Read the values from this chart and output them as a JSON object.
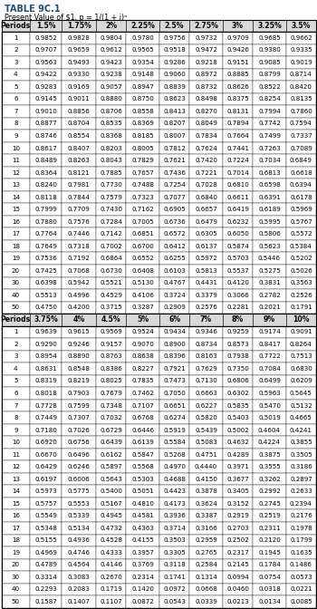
{
  "title1": "TABLE 9C.1",
  "title2": "Present Value of $1, p = 1/(1 + i)ⁿ",
  "header1": [
    "Periods",
    "1.5%",
    "1.75%",
    "2%",
    "2.25%",
    "2.5%",
    "2.75%",
    "3%",
    "3.25%",
    "3.5%"
  ],
  "rows1": [
    [
      1,
      "0.9852",
      "0.9828",
      "0.9804",
      "0.9780",
      "0.9756",
      "0.9732",
      "0.9709",
      "0.9685",
      "0.9662"
    ],
    [
      2,
      "0.9707",
      "0.9659",
      "0.9612",
      "0.9565",
      "0.9518",
      "0.9472",
      "0.9426",
      "0.9380",
      "0.9335"
    ],
    [
      3,
      "0.9563",
      "0.9493",
      "0.9423",
      "0.9354",
      "0.9286",
      "0.9218",
      "0.9151",
      "0.9085",
      "0.9019"
    ],
    [
      4,
      "0.9422",
      "0.9330",
      "0.9238",
      "0.9148",
      "0.9060",
      "0.8972",
      "0.8885",
      "0.8799",
      "0.8714"
    ],
    [
      5,
      "0.9283",
      "0.9169",
      "0.9057",
      "0.8947",
      "0.8839",
      "0.8732",
      "0.8626",
      "0.8522",
      "0.8420"
    ],
    [
      6,
      "0.9145",
      "0.9011",
      "0.8880",
      "0.8750",
      "0.8623",
      "0.8498",
      "0.8375",
      "0.8254",
      "0.8135"
    ],
    [
      7,
      "0.9010",
      "0.8856",
      "0.8706",
      "0.8558",
      "0.8413",
      "0.8270",
      "0.8131",
      "0.7994",
      "0.7860"
    ],
    [
      8,
      "0.8877",
      "0.8704",
      "0.8535",
      "0.8369",
      "0.8207",
      "0.8049",
      "0.7894",
      "0.7742",
      "0.7594"
    ],
    [
      9,
      "0.8746",
      "0.8554",
      "0.8368",
      "0.8185",
      "0.8007",
      "0.7834",
      "0.7664",
      "0.7499",
      "0.7337"
    ],
    [
      10,
      "0.8617",
      "0.8407",
      "0.8203",
      "0.8005",
      "0.7812",
      "0.7624",
      "0.7441",
      "0.7263",
      "0.7089"
    ],
    [
      11,
      "0.8489",
      "0.8263",
      "0.8043",
      "0.7829",
      "0.7621",
      "0.7420",
      "0.7224",
      "0.7034",
      "0.6849"
    ],
    [
      12,
      "0.8364",
      "0.8121",
      "0.7885",
      "0.7657",
      "0.7436",
      "0.7221",
      "0.7014",
      "0.6813",
      "0.6618"
    ],
    [
      13,
      "0.8240",
      "0.7981",
      "0.7730",
      "0.7488",
      "0.7254",
      "0.7028",
      "0.6810",
      "0.6598",
      "0.6394"
    ],
    [
      14,
      "0.8118",
      "0.7844",
      "0.7579",
      "0.7323",
      "0.7077",
      "0.6840",
      "0.6611",
      "0.6391",
      "0.6178"
    ],
    [
      15,
      "0.7999",
      "0.7709",
      "0.7430",
      "0.7162",
      "0.6905",
      "0.6657",
      "0.6419",
      "0.6189",
      "0.5969"
    ],
    [
      16,
      "0.7880",
      "0.7576",
      "0.7284",
      "0.7005",
      "0.6736",
      "0.6479",
      "0.6232",
      "0.5995",
      "0.5767"
    ],
    [
      17,
      "0.7764",
      "0.7446",
      "0.7142",
      "0.6851",
      "0.6572",
      "0.6305",
      "0.6050",
      "0.5806",
      "0.5572"
    ],
    [
      18,
      "0.7649",
      "0.7318",
      "0.7002",
      "0.6700",
      "0.6412",
      "0.6137",
      "0.5874",
      "0.5623",
      "0.5384"
    ],
    [
      19,
      "0.7536",
      "0.7192",
      "0.6864",
      "0.6552",
      "0.6255",
      "0.5972",
      "0.5703",
      "0.5446",
      "0.5202"
    ],
    [
      20,
      "0.7425",
      "0.7068",
      "0.6730",
      "0.6408",
      "0.6103",
      "0.5813",
      "0.5537",
      "0.5275",
      "0.5026"
    ],
    [
      30,
      "0.6398",
      "0.5942",
      "0.5521",
      "0.5130",
      "0.4767",
      "0.4431",
      "0.4120",
      "0.3831",
      "0.3563"
    ],
    [
      40,
      "0.5513",
      "0.4996",
      "0.4529",
      "0.4106",
      "0.3724",
      "0.3379",
      "0.3066",
      "0.2782",
      "0.2526"
    ],
    [
      50,
      "0.4750",
      "0.4200",
      "0.3715",
      "0.3287",
      "0.2909",
      "0.2576",
      "0.2281",
      "0.2021",
      "0.1791"
    ]
  ],
  "header2": [
    "Periods",
    "3.75%",
    "4%",
    "4.5%",
    "5%",
    "6%",
    "7%",
    "8%",
    "9%",
    "10%"
  ],
  "rows2": [
    [
      1,
      "0.9639",
      "0.9615",
      "0.9569",
      "0.9524",
      "0.9434",
      "0.9346",
      "0.9259",
      "0.9174",
      "0.9091"
    ],
    [
      2,
      "0.9290",
      "0.9246",
      "0.9157",
      "0.9070",
      "0.8900",
      "0.8734",
      "0.8573",
      "0.8417",
      "0.8264"
    ],
    [
      3,
      "0.8954",
      "0.8890",
      "0.8763",
      "0.8638",
      "0.8396",
      "0.8163",
      "0.7938",
      "0.7722",
      "0.7513"
    ],
    [
      4,
      "0.8631",
      "0.8548",
      "0.8386",
      "0.8227",
      "0.7921",
      "0.7629",
      "0.7350",
      "0.7084",
      "0.6830"
    ],
    [
      5,
      "0.8319",
      "0.8219",
      "0.8025",
      "0.7835",
      "0.7473",
      "0.7130",
      "0.6806",
      "0.6499",
      "0.6209"
    ],
    [
      6,
      "0.8018",
      "0.7903",
      "0.7679",
      "0.7462",
      "0.7050",
      "0.6663",
      "0.6302",
      "0.5963",
      "0.5645"
    ],
    [
      7,
      "0.7728",
      "0.7599",
      "0.7348",
      "0.7107",
      "0.6651",
      "0.6227",
      "0.5835",
      "0.5470",
      "0.5132"
    ],
    [
      8,
      "0.7449",
      "0.7307",
      "0.7032",
      "0.6768",
      "0.6274",
      "0.5820",
      "0.5403",
      "0.5019",
      "0.4665"
    ],
    [
      9,
      "0.7180",
      "0.7026",
      "0.6729",
      "0.6446",
      "0.5919",
      "0.5439",
      "0.5002",
      "0.4604",
      "0.4241"
    ],
    [
      10,
      "0.6920",
      "0.6756",
      "0.6439",
      "0.6139",
      "0.5584",
      "0.5083",
      "0.4632",
      "0.4224",
      "0.3855"
    ],
    [
      11,
      "0.6670",
      "0.6496",
      "0.6162",
      "0.5847",
      "0.5268",
      "0.4751",
      "0.4289",
      "0.3875",
      "0.3505"
    ],
    [
      12,
      "0.6429",
      "0.6246",
      "0.5897",
      "0.5568",
      "0.4970",
      "0.4440",
      "0.3971",
      "0.3555",
      "0.3186"
    ],
    [
      13,
      "0.6197",
      "0.6006",
      "0.5643",
      "0.5303",
      "0.4688",
      "0.4150",
      "0.3677",
      "0.3262",
      "0.2897"
    ],
    [
      14,
      "0.5973",
      "0.5775",
      "0.5400",
      "0.5051",
      "0.4423",
      "0.3878",
      "0.3405",
      "0.2992",
      "0.2633"
    ],
    [
      15,
      "0.5757",
      "0.5553",
      "0.5167",
      "0.4810",
      "0.4173",
      "0.3624",
      "0.3152",
      "0.2745",
      "0.2394"
    ],
    [
      16,
      "0.5549",
      "0.5339",
      "0.4945",
      "0.4581",
      "0.3936",
      "0.3387",
      "0.2919",
      "0.2519",
      "0.2176"
    ],
    [
      17,
      "0.5348",
      "0.5134",
      "0.4732",
      "0.4363",
      "0.3714",
      "0.3166",
      "0.2703",
      "0.2311",
      "0.1978"
    ],
    [
      18,
      "0.5155",
      "0.4936",
      "0.4528",
      "0.4155",
      "0.3503",
      "0.2959",
      "0.2502",
      "0.2120",
      "0.1799"
    ],
    [
      19,
      "0.4969",
      "0.4746",
      "0.4333",
      "0.3957",
      "0.3305",
      "0.2765",
      "0.2317",
      "0.1945",
      "0.1635"
    ],
    [
      20,
      "0.4789",
      "0.4564",
      "0.4146",
      "0.3769",
      "0.3118",
      "0.2584",
      "0.2145",
      "0.1784",
      "0.1486"
    ],
    [
      30,
      "0.3314",
      "0.3083",
      "0.2670",
      "0.2314",
      "0.1741",
      "0.1314",
      "0.0994",
      "0.0754",
      "0.0573"
    ],
    [
      40,
      "0.2293",
      "0.2083",
      "0.1719",
      "0.1420",
      "0.0972",
      "0.0668",
      "0.0460",
      "0.0318",
      "0.0221"
    ],
    [
      50,
      "0.1587",
      "0.1407",
      "0.1107",
      "0.0872",
      "0.0543",
      "0.0339",
      "0.0213",
      "0.0134",
      "0.0085"
    ]
  ],
  "title_color": "#1F4E79",
  "header_bg": "#D9D9D9",
  "border_color": "#000000",
  "fig_width": 3.5,
  "fig_height": 6.72,
  "dpi": 100
}
